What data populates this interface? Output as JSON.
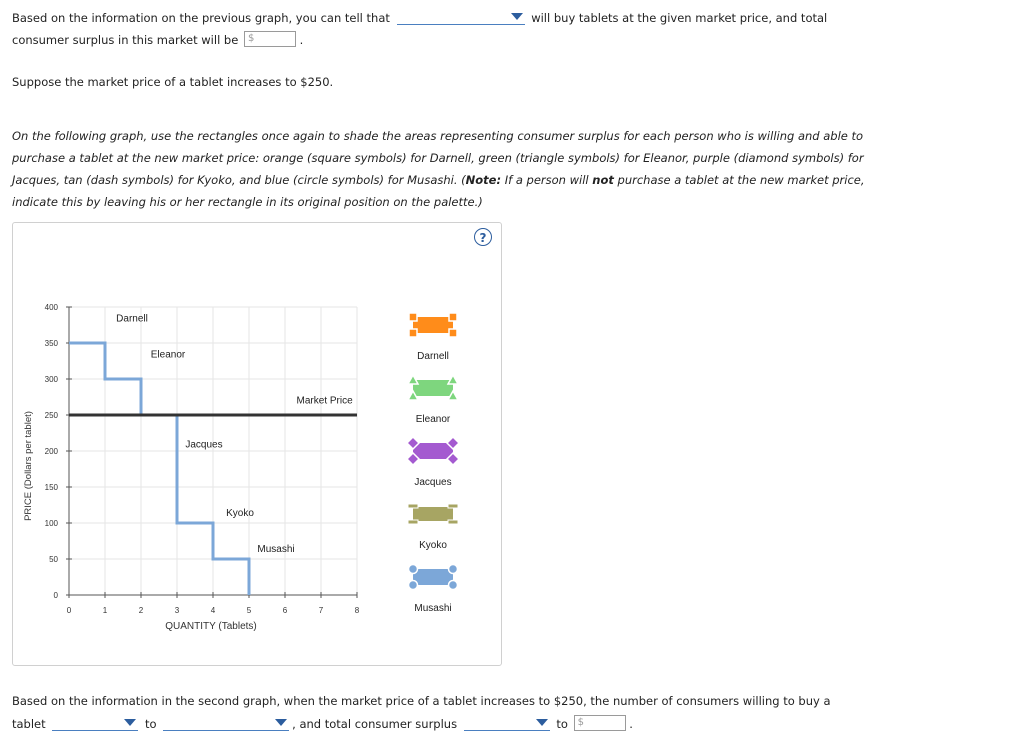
{
  "q1": {
    "text_a": "Based on the information on the previous graph, you can tell that",
    "text_b": "will buy tablets at the given market price, and total",
    "text_c": "consumer surplus in this market will be",
    "currency": "$",
    "end": "."
  },
  "q2": {
    "text": "Suppose the market price of a tablet increases to $250."
  },
  "instructions": {
    "line1": "On the following graph, use the rectangles once again to shade the areas representing consumer surplus for each person who is willing and able to",
    "line2": "purchase a tablet at the new market price: orange (square symbols) for Darnell, green (triangle symbols) for Eleanor, purple (diamond symbols) for",
    "line3_a": "Jacques, tan (dash symbols) for Kyoko, and blue (circle symbols) for Musashi. (",
    "note_label": "Note:",
    "line3_b": " If a person will ",
    "not": "not",
    "line3_c": " purchase a tablet at the new market price,",
    "line4": "indicate this by leaving his or her rectangle in its original position on the palette.)"
  },
  "help_label": "?",
  "chart_data": {
    "type": "line",
    "xlabel": "QUANTITY (Tablets)",
    "ylabel": "PRICE (Dollars per tablet)",
    "xlim": [
      0,
      8
    ],
    "ylim": [
      0,
      400
    ],
    "x_ticks": [
      "0",
      "1",
      "2",
      "3",
      "4",
      "5",
      "6",
      "7",
      "8"
    ],
    "y_ticks": [
      "0",
      "50",
      "100",
      "150",
      "200",
      "250",
      "300",
      "350",
      "400"
    ],
    "grid": true,
    "demand_steps": [
      {
        "name": "Darnell",
        "from": 0,
        "to": 1,
        "price": 350
      },
      {
        "name": "Eleanor",
        "from": 1,
        "to": 2,
        "price": 300
      },
      {
        "name": "Jacques",
        "from": 2,
        "to": 3,
        "price": 250
      },
      {
        "name": "Kyoko",
        "from": 3,
        "to": 4,
        "price": 100
      },
      {
        "name": "Musashi",
        "from": 4,
        "to": 5,
        "price": 50
      }
    ],
    "market_price": {
      "label": "Market Price",
      "value": 250
    },
    "step_labels": [
      {
        "text": "Darnell",
        "x": 1.75,
        "y": 380
      },
      {
        "text": "Eleanor",
        "x": 2.75,
        "y": 330
      },
      {
        "text": "Jacques",
        "x": 3.75,
        "y": 205
      },
      {
        "text": "Kyoko",
        "x": 4.75,
        "y": 110
      },
      {
        "text": "Musashi",
        "x": 5.75,
        "y": 60
      },
      {
        "text": "Market Price",
        "x": 7.1,
        "y": 266
      }
    ],
    "line_color": "#7ca7d8",
    "market_line_color": "#333333"
  },
  "palette": [
    {
      "name": "Darnell",
      "symbol": "square",
      "color": "#ff8c1a"
    },
    {
      "name": "Eleanor",
      "symbol": "triangle",
      "color": "#7ed67e"
    },
    {
      "name": "Jacques",
      "symbol": "diamond",
      "color": "#a45ad0"
    },
    {
      "name": "Kyoko",
      "symbol": "dash",
      "color": "#a7a563"
    },
    {
      "name": "Musashi",
      "symbol": "circle",
      "color": "#7ca7d8"
    }
  ],
  "q3": {
    "text_a": "Based on the information in the second graph, when the market price of a tablet increases to $250, the number of consumers willing to buy a",
    "text_b": "tablet",
    "to1": "to",
    "text_c": ", and total consumer surplus",
    "to2": "to",
    "currency": "$",
    "end": "."
  }
}
